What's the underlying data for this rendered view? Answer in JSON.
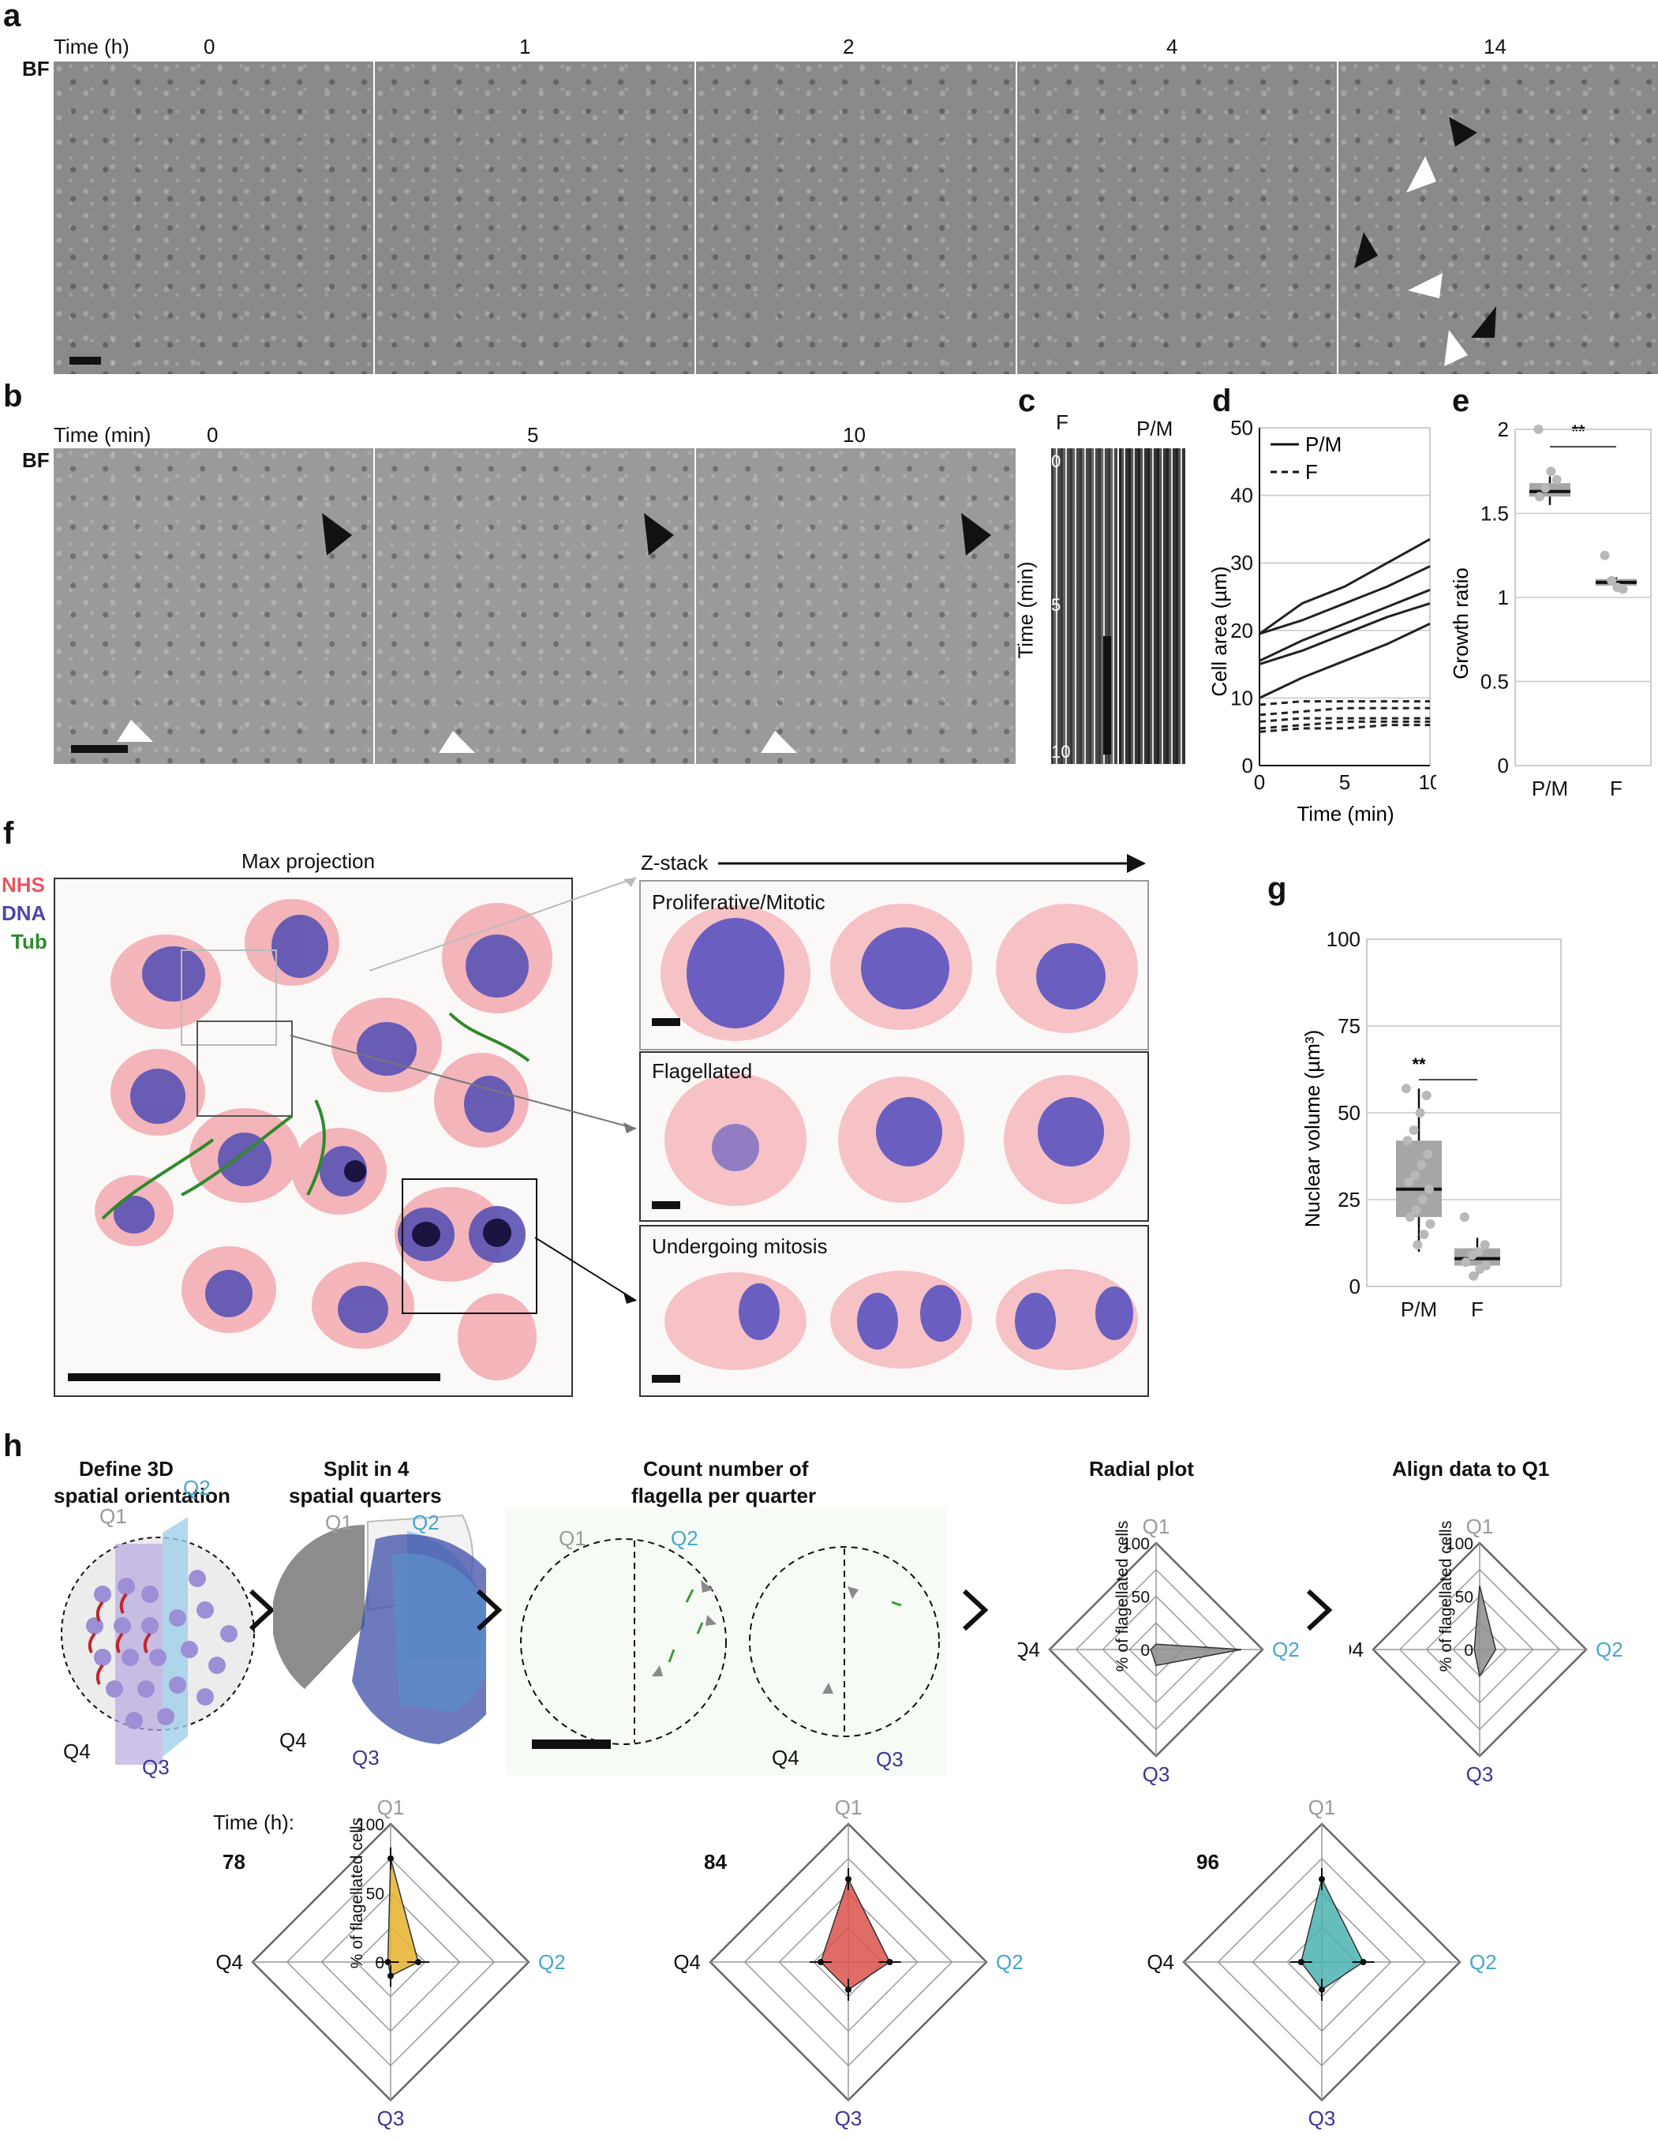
{
  "panels": {
    "a": {
      "label": "a",
      "time_label": "Time (h)",
      "times": [
        "0",
        "1",
        "2",
        "4",
        "14"
      ],
      "channel": "BF"
    },
    "b": {
      "label": "b",
      "time_label": "Time (min)",
      "times": [
        "0",
        "5",
        "10"
      ],
      "channel": "BF"
    },
    "c": {
      "label": "c",
      "col_f": "F",
      "col_pm": "P/M",
      "axis_label": "Time (min)",
      "ticks": [
        "0",
        "5",
        "10"
      ]
    },
    "d": {
      "label": "d",
      "legend_solid": "P/M",
      "legend_dashed": "F",
      "ylabel": "Cell area (µm)",
      "xlabel": "Time (min)",
      "yticks": [
        "0",
        "10",
        "20",
        "30",
        "40",
        "50"
      ],
      "xticks": [
        "0",
        "5",
        "10"
      ]
    },
    "e": {
      "label": "e",
      "ylabel": "Growth ratio",
      "yticks": [
        "0",
        "0.5",
        "1",
        "1.5",
        "2"
      ],
      "categories": [
        "P/M",
        "F"
      ],
      "significance": "**"
    },
    "f": {
      "label": "f",
      "max_projection": "Max projection",
      "zstack": "Z-stack",
      "channels": [
        "NHS",
        "DNA",
        "Tub"
      ],
      "channel_colors": [
        "#e8565f",
        "#4b47a8",
        "#2f8a2a"
      ],
      "rows": [
        "Proliferative/Mitotic",
        "Flagellated",
        "Undergoing mitosis"
      ]
    },
    "g": {
      "label": "g",
      "ylabel": "Nuclear volume (µm³)",
      "yticks": [
        "0",
        "25",
        "50",
        "75",
        "100"
      ],
      "categories": [
        "P/M",
        "F"
      ],
      "significance": "**"
    },
    "h": {
      "label": "h",
      "steps": [
        {
          "line1": "Define 3D",
          "line2": "spatial orientation"
        },
        {
          "line1": "Split in 4",
          "line2": "spatial quarters"
        },
        {
          "line1": "Count number of",
          "line2": "flagella per quarter"
        },
        {
          "line1": "Radial plot",
          "line2": ""
        },
        {
          "line1": "Align data to Q1",
          "line2": ""
        }
      ],
      "quarters": {
        "q1": "Q1",
        "q2": "Q2",
        "q3": "Q3",
        "q4": "Q4"
      },
      "quarter_colors": {
        "q1": "#9a9a9a",
        "q2": "#4aa6cf",
        "q3": "#3b3596",
        "q4": "#111111"
      },
      "radial_axis": "% of flagellated cells",
      "radial_ticks": [
        "0",
        "50",
        "100"
      ],
      "time_label": "Time (h):",
      "timepoints": [
        "78",
        "84",
        "96"
      ],
      "timepoint_colors": [
        "#e7b12e",
        "#d9534a",
        "#4bb3b0"
      ]
    }
  },
  "chart_data": [
    {
      "type": "line",
      "panel": "d",
      "xlabel": "Time (min)",
      "ylabel": "Cell area (µm)",
      "xlim": [
        0,
        10
      ],
      "ylim": [
        0,
        50
      ],
      "grid": true,
      "legend": "top-left",
      "x": [
        0,
        2.5,
        5,
        7.5,
        10
      ],
      "series": [
        {
          "name": "P/M",
          "values": [
            19.5,
            24,
            26.5,
            30,
            33.5
          ]
        },
        {
          "name": "P/M",
          "values": [
            19.5,
            21.5,
            24,
            26.5,
            29.5
          ]
        },
        {
          "name": "P/M",
          "values": [
            15.5,
            18.5,
            21,
            23.5,
            26
          ]
        },
        {
          "name": "P/M",
          "values": [
            15,
            17,
            19.5,
            22,
            24
          ]
        },
        {
          "name": "P/M",
          "values": [
            10,
            13,
            15.5,
            18,
            21
          ]
        },
        {
          "name": "F",
          "values": [
            9,
            9.5,
            9.5,
            9.5,
            9.5
          ]
        },
        {
          "name": "F",
          "values": [
            7.5,
            8,
            8.5,
            8.5,
            8.5
          ]
        },
        {
          "name": "F",
          "values": [
            6.5,
            7,
            7,
            7,
            7
          ]
        },
        {
          "name": "F",
          "values": [
            5.5,
            6,
            6.5,
            6.5,
            6.5
          ]
        },
        {
          "name": "F",
          "values": [
            5,
            5.5,
            5.5,
            6,
            6
          ]
        }
      ]
    },
    {
      "type": "box",
      "panel": "e",
      "ylabel": "Growth ratio",
      "ylim": [
        0,
        2
      ],
      "categories": [
        "P/M",
        "F"
      ],
      "boxes": [
        {
          "q1": 1.6,
          "median": 1.63,
          "q3": 1.68,
          "whisker_low": 1.55,
          "whisker_high": 1.72,
          "points": [
            2.0,
            1.7,
            1.75,
            1.65,
            1.6
          ]
        },
        {
          "q1": 1.07,
          "median": 1.09,
          "q3": 1.11,
          "whisker_low": 1.05,
          "whisker_high": 1.12,
          "points": [
            1.25,
            1.05,
            1.06,
            1.1
          ]
        }
      ]
    },
    {
      "type": "box",
      "panel": "g",
      "ylabel": "Nuclear volume (µm³)",
      "ylim": [
        0,
        100
      ],
      "categories": [
        "P/M",
        "F"
      ],
      "boxes": [
        {
          "q1": 20,
          "median": 28,
          "q3": 42,
          "whisker_low": 10,
          "whisker_high": 57,
          "points": [
            57,
            55,
            50,
            45,
            42,
            38,
            35,
            32,
            30,
            28,
            25,
            22,
            20,
            18,
            15,
            12
          ]
        },
        {
          "q1": 6,
          "median": 8,
          "q3": 11,
          "whisker_low": 3,
          "whisker_high": 14,
          "points": [
            20,
            12,
            10,
            9,
            7,
            6,
            5,
            3
          ]
        }
      ]
    },
    {
      "type": "radar",
      "panel": "h-radial",
      "axes": [
        "Q1",
        "Q2",
        "Q3",
        "Q4"
      ],
      "rmax": 100,
      "values": [
        5,
        80,
        15,
        5
      ]
    },
    {
      "type": "radar",
      "panel": "h-aligned",
      "axes": [
        "Q1",
        "Q2",
        "Q3",
        "Q4"
      ],
      "rmax": 100,
      "values": [
        60,
        15,
        25,
        5
      ]
    },
    {
      "type": "radar",
      "panel": "h-78",
      "axes": [
        "Q1",
        "Q2",
        "Q3",
        "Q4"
      ],
      "rmax": 100,
      "values": [
        75,
        20,
        10,
        2
      ]
    },
    {
      "type": "radar",
      "panel": "h-84",
      "axes": [
        "Q1",
        "Q2",
        "Q3",
        "Q4"
      ],
      "rmax": 100,
      "values": [
        60,
        30,
        20,
        20
      ]
    },
    {
      "type": "radar",
      "panel": "h-96",
      "axes": [
        "Q1",
        "Q2",
        "Q3",
        "Q4"
      ],
      "rmax": 100,
      "values": [
        60,
        30,
        20,
        15
      ]
    }
  ]
}
